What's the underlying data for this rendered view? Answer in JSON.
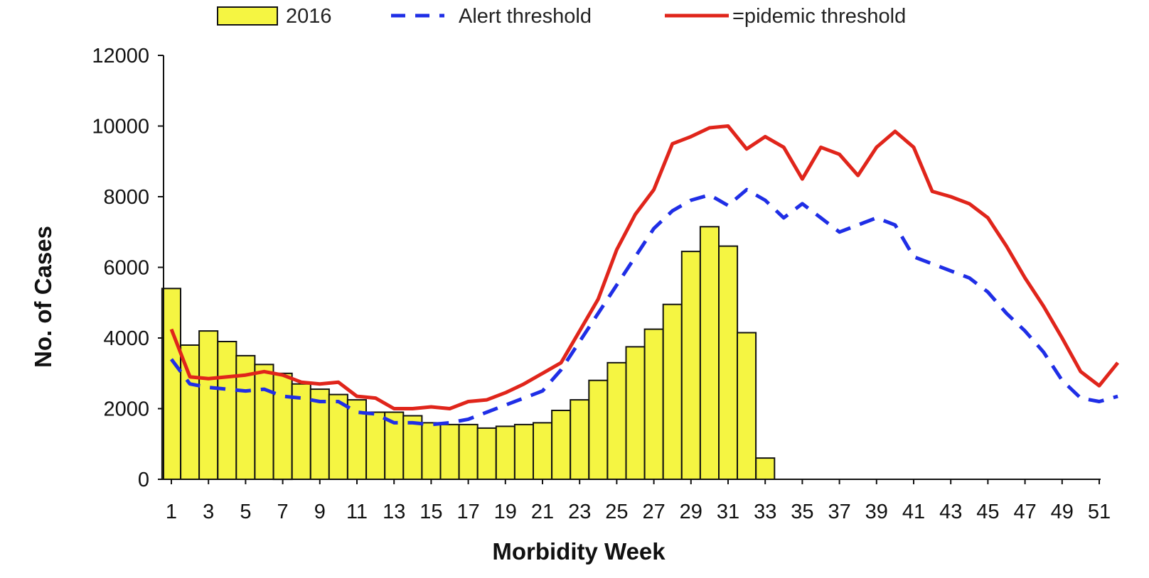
{
  "chart_data": {
    "type": "bar",
    "title": "",
    "xlabel": "Morbidity Week",
    "ylabel": "No. of Cases",
    "ylim": [
      0,
      12000
    ],
    "yticks": [
      0,
      2000,
      4000,
      6000,
      8000,
      10000,
      12000
    ],
    "xlim": [
      1,
      52
    ],
    "xtick_labels": [
      "1",
      "3",
      "5",
      "7",
      "9",
      "11",
      "13",
      "15",
      "17",
      "19",
      "21",
      "23",
      "25",
      "27",
      "29",
      "31",
      "33",
      "35",
      "37",
      "39",
      "41",
      "43",
      "45",
      "47",
      "49",
      "51"
    ],
    "grid": false,
    "legend_position": "top",
    "legend": [
      {
        "label": "2016",
        "kind": "bar",
        "color": "#f5f542"
      },
      {
        "label": "Alert threshold",
        "kind": "dashed-line",
        "color": "#1f2ee6"
      },
      {
        "label": "=pidemic threshold",
        "kind": "line",
        "color": "#e0251b"
      }
    ],
    "bars": {
      "name": "2016",
      "color": "#f5f542",
      "weeks": [
        1,
        2,
        3,
        4,
        5,
        6,
        7,
        8,
        9,
        10,
        11,
        12,
        13,
        14,
        15,
        16,
        17,
        18,
        19,
        20,
        21,
        22,
        23,
        24,
        25,
        26,
        27,
        28,
        29,
        30,
        31,
        32,
        33
      ],
      "values": [
        5400,
        3800,
        4200,
        3900,
        3500,
        3250,
        3000,
        2700,
        2550,
        2400,
        2250,
        1900,
        1900,
        1800,
        1600,
        1550,
        1550,
        1450,
        1500,
        1550,
        1600,
        1950,
        2250,
        2800,
        3300,
        3750,
        4250,
        4950,
        6450,
        7150,
        6600,
        4150,
        600
      ]
    },
    "series": [
      {
        "name": "Alert threshold",
        "color": "#1f2ee6",
        "style": "dashed",
        "x": [
          1,
          2,
          3,
          4,
          5,
          6,
          7,
          8,
          9,
          10,
          11,
          12,
          13,
          14,
          15,
          16,
          17,
          18,
          19,
          20,
          21,
          22,
          23,
          24,
          25,
          26,
          27,
          28,
          29,
          30,
          31,
          32,
          33,
          34,
          35,
          36,
          37,
          38,
          39,
          40,
          41,
          42,
          43,
          44,
          45,
          46,
          47,
          48,
          49,
          50,
          51,
          52
        ],
        "values": [
          3400,
          2700,
          2600,
          2550,
          2500,
          2550,
          2350,
          2300,
          2200,
          2200,
          1900,
          1850,
          1600,
          1600,
          1550,
          1600,
          1700,
          1900,
          2100,
          2300,
          2500,
          3100,
          3900,
          4700,
          5500,
          6300,
          7100,
          7600,
          7900,
          8050,
          7750,
          8200,
          7900,
          7400,
          7800,
          7400,
          7000,
          7200,
          7400,
          7200,
          6300,
          6100,
          5900,
          5700,
          5300,
          4700,
          4200,
          3600,
          2800,
          2300,
          2200,
          2350
        ]
      },
      {
        "name": "=pidemic threshold",
        "color": "#e0251b",
        "style": "solid",
        "x": [
          1,
          2,
          3,
          4,
          5,
          6,
          7,
          8,
          9,
          10,
          11,
          12,
          13,
          14,
          15,
          16,
          17,
          18,
          19,
          20,
          21,
          22,
          23,
          24,
          25,
          26,
          27,
          28,
          29,
          30,
          31,
          32,
          33,
          34,
          35,
          36,
          37,
          38,
          39,
          40,
          41,
          42,
          43,
          44,
          45,
          46,
          47,
          48,
          49,
          50,
          51,
          52
        ],
        "values": [
          4250,
          2900,
          2850,
          2900,
          2950,
          3050,
          2950,
          2750,
          2700,
          2750,
          2350,
          2300,
          2000,
          2000,
          2050,
          2000,
          2200,
          2250,
          2450,
          2700,
          3000,
          3300,
          4200,
          5100,
          6500,
          7500,
          8200,
          9500,
          9700,
          9950,
          10000,
          9350,
          9700,
          9400,
          8500,
          9400,
          9200,
          8600,
          9400,
          9850,
          9400,
          8150,
          8000,
          7800,
          7400,
          6600,
          5700,
          4900,
          4000,
          3050,
          2650,
          3300
        ]
      }
    ]
  }
}
